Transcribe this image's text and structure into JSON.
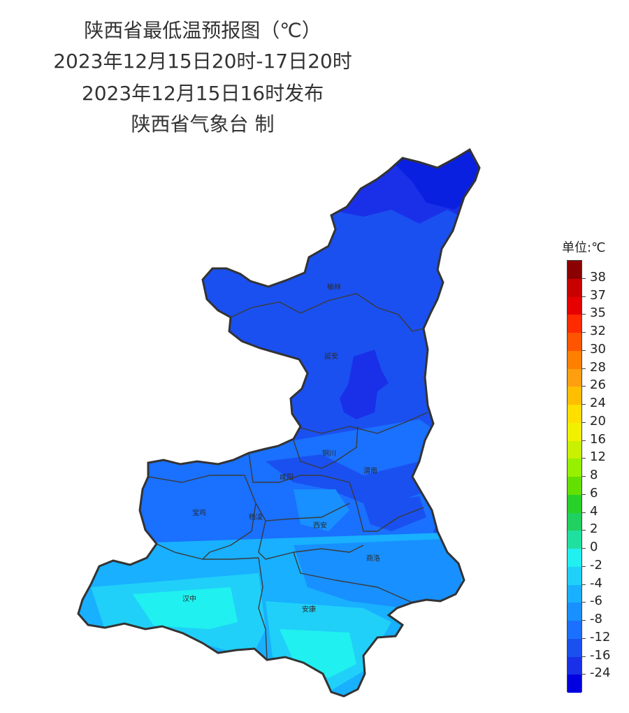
{
  "title": {
    "line1": "陕西省最低温预报图（℃）",
    "line2": "2023年12月15日20时-17日20时",
    "line3": "2023年12月15日16时发布",
    "line4": "陕西省气象台 制"
  },
  "cities": {
    "yulin": "榆林",
    "yanan": "延安",
    "tongchuan": "铜川",
    "weinan": "渭南",
    "xianyang": "咸阳",
    "baoji": "宝鸡",
    "yangling": "杨凌",
    "xian": "西安",
    "shangluo": "商洛",
    "hanzhong": "汉中",
    "ankang": "安康"
  },
  "legend": {
    "title": "单位:℃",
    "labels": [
      "38",
      "37",
      "35",
      "32",
      "30",
      "28",
      "26",
      "24",
      "20",
      "16",
      "12",
      "8",
      "6",
      "4",
      "2",
      "0",
      "-2",
      "-4",
      "-6",
      "-8",
      "-12",
      "-16",
      "-24"
    ],
    "colors": [
      "#8b0000",
      "#c80000",
      "#e60000",
      "#ff2a00",
      "#ff5500",
      "#ff7f00",
      "#ff9f10",
      "#ffbf00",
      "#ffdf00",
      "#f0f000",
      "#c8f000",
      "#96f000",
      "#64e000",
      "#28d028",
      "#20d060",
      "#20e0a0",
      "#20f0f0",
      "#20d0f8",
      "#18b0ff",
      "#1890ff",
      "#1a70ff",
      "#1a50f0",
      "#1a30e8",
      "#0000e0"
    ]
  }
}
